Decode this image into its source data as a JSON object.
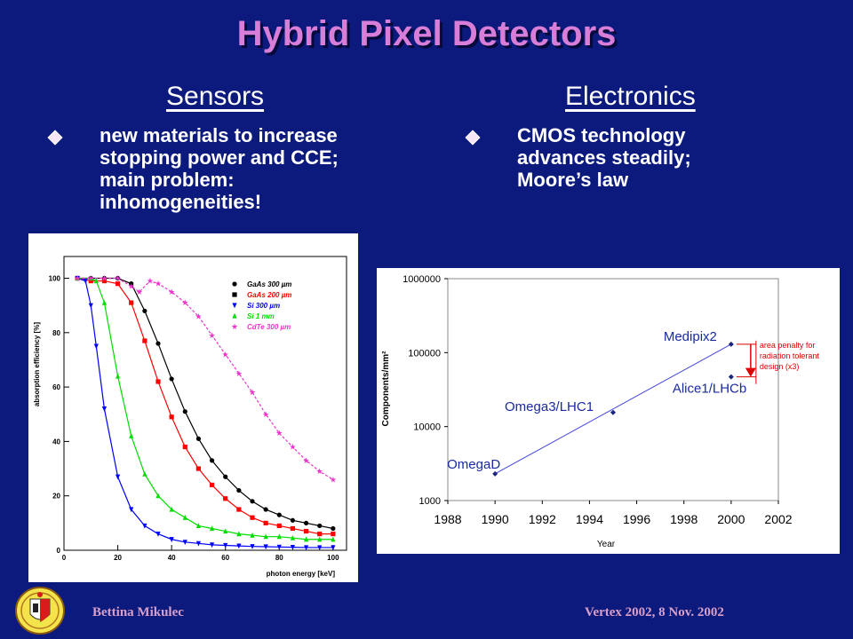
{
  "slide": {
    "title": "Hybrid Pixel Detectors",
    "left_heading": "Sensors",
    "right_heading": "Electronics",
    "left_bullet": [
      "new materials to increase",
      "stopping power and CCE;",
      "main problem:",
      "inhomogeneities!"
    ],
    "right_bullet": [
      "CMOS technology",
      "advances steadily;",
      "Moore’s law"
    ],
    "footer_left": "Bettina Mikulec",
    "footer_right": "Vertex 2002, 8 Nov. 2002"
  },
  "colors": {
    "background": "#0c1a7e",
    "title": "#d87ed8",
    "footer": "#d8a0c8",
    "gaas300": "#000000",
    "gaas200": "#ff0000",
    "si300": "#0000ff",
    "si1mm": "#00dd00",
    "cdte300": "#ee33cc",
    "moore_line": "#4444dd",
    "annotation": "#dd0000"
  },
  "chart_data": [
    {
      "type": "line",
      "title": "",
      "xlabel": "photon energy [keV]",
      "ylabel": "absorption efficiency [%]",
      "xlim": [
        0,
        105
      ],
      "ylim": [
        0,
        108
      ],
      "xticks": [
        0,
        20,
        40,
        60,
        80,
        100
      ],
      "yticks": [
        0,
        20,
        40,
        60,
        80,
        100
      ],
      "legend_position": "top-right",
      "series": [
        {
          "name": "GaAs 300 µm",
          "color_key": "gaas300",
          "marker": "circle",
          "dash": false,
          "x": [
            5,
            10,
            15,
            20,
            25,
            30,
            35,
            40,
            45,
            50,
            55,
            60,
            65,
            70,
            75,
            80,
            85,
            90,
            95,
            100
          ],
          "y": [
            100,
            100,
            100,
            100,
            98,
            88,
            76,
            63,
            51,
            41,
            33,
            27,
            22,
            18,
            15,
            13,
            11,
            10,
            9,
            8
          ]
        },
        {
          "name": "GaAs 200 µm",
          "color_key": "gaas200",
          "marker": "square",
          "dash": false,
          "x": [
            5,
            10,
            15,
            20,
            25,
            30,
            35,
            40,
            45,
            50,
            55,
            60,
            65,
            70,
            75,
            80,
            85,
            90,
            95,
            100
          ],
          "y": [
            100,
            99,
            99,
            98,
            91,
            77,
            62,
            49,
            38,
            30,
            24,
            19,
            15,
            12,
            10,
            9,
            8,
            7,
            6,
            6
          ]
        },
        {
          "name": "Si 300 µm",
          "color_key": "si300",
          "marker": "triangle-down",
          "dash": false,
          "x": [
            5,
            8,
            10,
            12,
            15,
            20,
            25,
            30,
            35,
            40,
            45,
            50,
            55,
            60,
            65,
            70,
            75,
            80,
            85,
            90,
            95,
            100
          ],
          "y": [
            100,
            99,
            90,
            75,
            52,
            27,
            15,
            9,
            6,
            4,
            3,
            2.5,
            2,
            1.8,
            1.6,
            1.4,
            1.3,
            1.2,
            1.1,
            1,
            1,
            1
          ]
        },
        {
          "name": "Si 1 mm",
          "color_key": "si1mm",
          "marker": "triangle-up",
          "dash": false,
          "x": [
            5,
            10,
            12,
            15,
            20,
            25,
            30,
            35,
            40,
            45,
            50,
            55,
            60,
            65,
            70,
            75,
            80,
            85,
            90,
            95,
            100
          ],
          "y": [
            100,
            100,
            99,
            91,
            64,
            42,
            28,
            20,
            15,
            12,
            9,
            8,
            7,
            6,
            5.5,
            5,
            5,
            4.5,
            4,
            4,
            4
          ]
        },
        {
          "name": "CdTe 300 µm",
          "color_key": "cdte300",
          "marker": "star",
          "dash": true,
          "x": [
            5,
            10,
            15,
            20,
            25,
            28,
            32,
            35,
            40,
            45,
            50,
            55,
            60,
            65,
            70,
            75,
            80,
            85,
            90,
            95,
            100
          ],
          "y": [
            100,
            100,
            100,
            100,
            97,
            95,
            99,
            98,
            95,
            91,
            86,
            79,
            72,
            65,
            58,
            50,
            43,
            38,
            33,
            29,
            26
          ]
        }
      ]
    },
    {
      "type": "scatter",
      "title": "",
      "xlabel": "Year",
      "ylabel": "Components/mm²",
      "y_scale": "log",
      "xlim": [
        1988,
        2002
      ],
      "ylim": [
        1000,
        1000000
      ],
      "xticks": [
        1988,
        1990,
        1992,
        1994,
        1996,
        1998,
        2000,
        2002
      ],
      "yticks": [
        1000,
        10000,
        100000,
        1000000
      ],
      "ytick_labels": [
        "1000",
        "10000",
        "100000",
        "1000000"
      ],
      "points": [
        {
          "label": "OmegaD",
          "x": 1990,
          "y": 2300
        },
        {
          "label": "Omega3/LHC1",
          "x": 1995,
          "y": 15500
        },
        {
          "label": "Medipix2",
          "x": 2000,
          "y": 130000
        },
        {
          "label": "Alice1/LHCb",
          "x": 2000,
          "y": 47000
        }
      ],
      "trend_line": {
        "x": [
          1990,
          2000
        ],
        "y": [
          2300,
          130000
        ]
      },
      "annotation": [
        "area penalty for",
        "radiation tolerant",
        "design (x3)"
      ]
    }
  ]
}
